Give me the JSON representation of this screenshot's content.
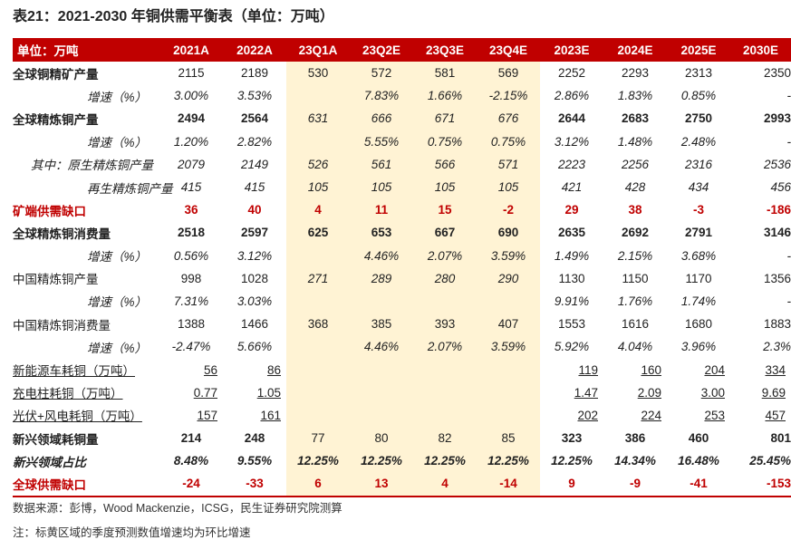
{
  "title": "表21：2021-2030 年铜供需平衡表（单位：万吨）",
  "header": [
    "单位：万吨",
    "2021A",
    "2022A",
    "23Q1A",
    "23Q2E",
    "23Q3E",
    "23Q4E",
    "2023E",
    "2024E",
    "2025E",
    "2030E"
  ],
  "rows": [
    {
      "label": "全球铜精矿产量",
      "values": [
        "2115",
        "2189",
        "530",
        "572",
        "581",
        "569",
        "2252",
        "2293",
        "2313",
        "2350"
      ]
    },
    {
      "label": "增速（%）",
      "values": [
        "3.00%",
        "3.53%",
        "",
        "7.83%",
        "1.66%",
        "-2.15%",
        "2.86%",
        "1.83%",
        "0.85%",
        "-"
      ]
    },
    {
      "label": "全球精炼铜产量",
      "values": [
        "2494",
        "2564",
        "631",
        "666",
        "671",
        "676",
        "2644",
        "2683",
        "2750",
        "2993"
      ]
    },
    {
      "label": "增速（%）",
      "values": [
        "1.20%",
        "2.82%",
        "",
        "5.55%",
        "0.75%",
        "0.75%",
        "3.12%",
        "1.48%",
        "2.48%",
        "-"
      ]
    },
    {
      "label": "其中：原生精炼铜产量",
      "values": [
        "2079",
        "2149",
        "526",
        "561",
        "566",
        "571",
        "2223",
        "2256",
        "2316",
        "2536"
      ]
    },
    {
      "label": "再生精炼铜产量",
      "values": [
        "415",
        "415",
        "105",
        "105",
        "105",
        "105",
        "421",
        "428",
        "434",
        "456"
      ]
    },
    {
      "label": "矿端供需缺口",
      "values": [
        "36",
        "40",
        "4",
        "11",
        "15",
        "-2",
        "29",
        "38",
        "-3",
        "-186"
      ]
    },
    {
      "label": "全球精炼铜消费量",
      "values": [
        "2518",
        "2597",
        "625",
        "653",
        "667",
        "690",
        "2635",
        "2692",
        "2791",
        "3146"
      ]
    },
    {
      "label": "增速（%）",
      "values": [
        "0.56%",
        "3.12%",
        "",
        "4.46%",
        "2.07%",
        "3.59%",
        "1.49%",
        "2.15%",
        "3.68%",
        "-"
      ]
    },
    {
      "label": "中国精炼铜产量",
      "values": [
        "998",
        "1028",
        "271",
        "289",
        "280",
        "290",
        "1130",
        "1150",
        "1170",
        "1356"
      ]
    },
    {
      "label": "增速（%）",
      "values": [
        "7.31%",
        "3.03%",
        "",
        "",
        "",
        "",
        "9.91%",
        "1.76%",
        "1.74%",
        "-"
      ]
    },
    {
      "label": "中国精炼铜消费量",
      "values": [
        "1388",
        "1466",
        "368",
        "385",
        "393",
        "407",
        "1553",
        "1616",
        "1680",
        "1883"
      ]
    },
    {
      "label": "增速（%）",
      "values": [
        "-2.47%",
        "5.66%",
        "",
        "4.46%",
        "2.07%",
        "3.59%",
        "5.92%",
        "4.04%",
        "3.96%",
        "2.3%"
      ]
    },
    {
      "label": "新能源车耗铜（万吨）",
      "values": [
        "56",
        "86",
        "",
        "",
        "",
        "",
        "119",
        "160",
        "204",
        "334"
      ]
    },
    {
      "label": "充电柱耗铜（万吨）",
      "values": [
        "0.77",
        "1.05",
        "",
        "",
        "",
        "",
        "1.47",
        "2.09",
        "3.00",
        "9.69"
      ]
    },
    {
      "label": "光伏+风电耗铜（万吨）",
      "values": [
        "157",
        "161",
        "",
        "",
        "",
        "",
        "202",
        "224",
        "253",
        "457"
      ]
    },
    {
      "label": "新兴领域耗铜量",
      "values": [
        "214",
        "248",
        "77",
        "80",
        "82",
        "85",
        "323",
        "386",
        "460",
        "801"
      ]
    },
    {
      "label": "新兴领域占比",
      "values": [
        "8.48%",
        "9.55%",
        "12.25%",
        "12.25%",
        "12.25%",
        "12.25%",
        "12.25%",
        "14.34%",
        "16.48%",
        "25.45%"
      ]
    },
    {
      "label": "全球供需缺口",
      "values": [
        "-24",
        "-33",
        "6",
        "13",
        "4",
        "-14",
        "9",
        "-9",
        "-41",
        "-153"
      ]
    }
  ],
  "footnotes": {
    "source": "数据来源：彭博，Wood Mackenzie，ICSG，民生证券研究院测算",
    "note": "注：标黄区域的季度预测数值增速均为环比增速"
  },
  "colors": {
    "accent": "#c00000",
    "highlight": "#fff3d4"
  }
}
